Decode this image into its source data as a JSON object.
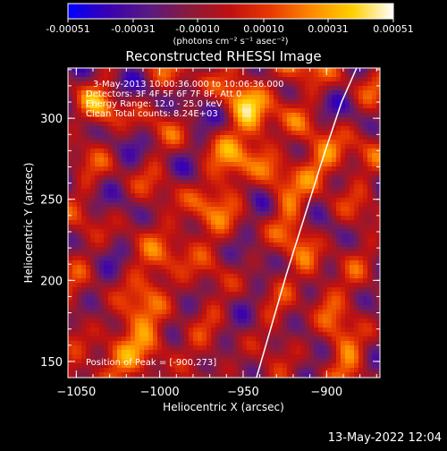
{
  "colorbar": {
    "ticks": [
      "-0.00051",
      "-0.00031",
      "-0.00010",
      "0.00010",
      "0.00031",
      "0.00051"
    ],
    "unit_label": "(photons cm⁻² s⁻¹ asec⁻²)",
    "range": [
      -0.00051,
      0.00051
    ],
    "colormap": [
      "#0000ff",
      "#3a00b0",
      "#5a1a80",
      "#8a1a3a",
      "#c01010",
      "#e83a00",
      "#ff8a00",
      "#ffd000",
      "#ffffff"
    ]
  },
  "chart_data": {
    "type": "heatmap",
    "title": "Reconstructed RHESSI Image",
    "xlabel": "Heliocentric X (arcsec)",
    "ylabel": "Heliocentric Y (arcsec)",
    "xlim": [
      -1055,
      -868
    ],
    "ylim": [
      140,
      331
    ],
    "xticks": [
      -1050,
      -1000,
      -950,
      -900
    ],
    "xtick_labels": [
      "−1050",
      "−1000",
      "−950",
      "−900"
    ],
    "yticks": [
      150,
      200,
      250,
      300
    ],
    "yticks_labels": [
      "150",
      "200",
      "250",
      "300"
    ],
    "annotations": [
      "3-May-2013 10:00:36.000 to 10:06:36.000",
      "Detectors: 3F 4F 5F 6F 7F 8F, Att 0",
      "Energy Range: 12.0 - 25.0 keV",
      "Clean Total counts: 8.24E+03"
    ],
    "peak_label": "Position of Peak = [-900,273]",
    "peak_position": [
      -900,
      273
    ],
    "limb_curve": {
      "x": [
        -942,
        -933,
        -924,
        -913,
        -902,
        -891,
        -882
      ],
      "y": [
        140,
        172,
        204,
        240,
        276,
        310,
        331
      ]
    }
  },
  "footer": {
    "timestamp": "13-May-2022 12:04"
  }
}
